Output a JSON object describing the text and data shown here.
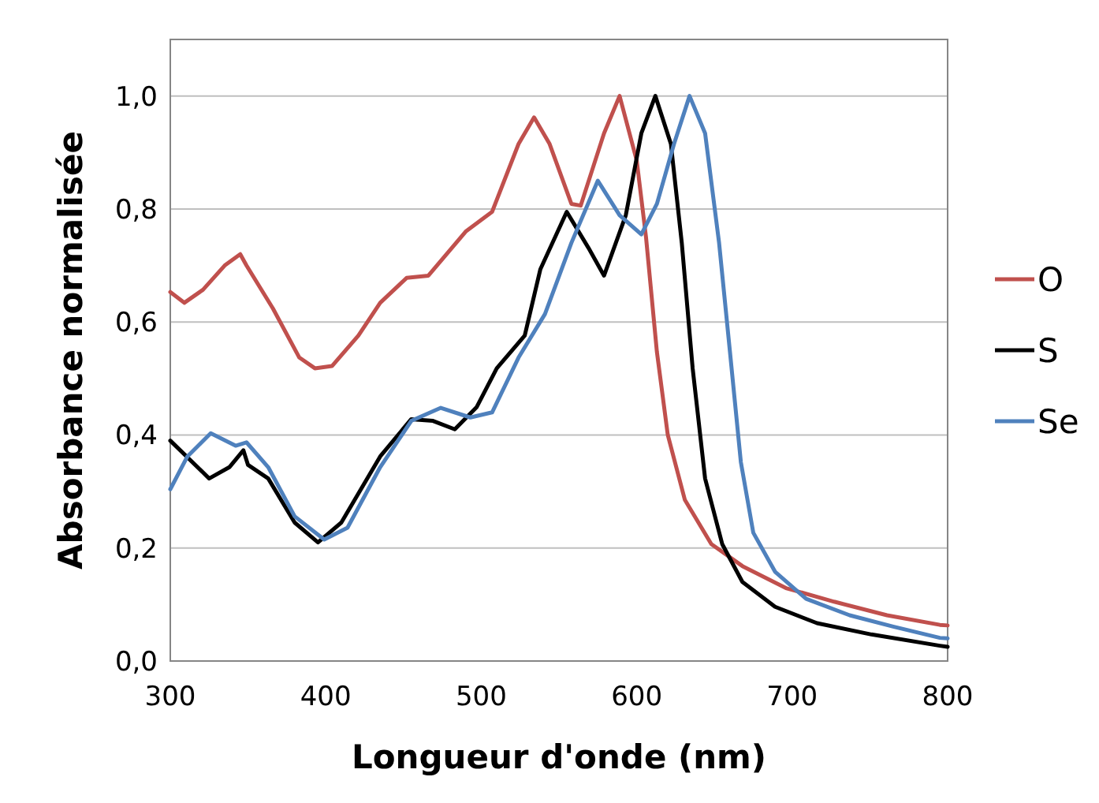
{
  "chart_data": {
    "type": "line",
    "xlabel": "Longueur d'onde (nm)",
    "ylabel": "Absorbance normalisée",
    "xlim": [
      300,
      800
    ],
    "xticks": [
      300,
      400,
      500,
      600,
      700,
      800
    ],
    "ylim": [
      0,
      1.1
    ],
    "yticks": [
      {
        "value": 0,
        "label": "0,0"
      },
      {
        "value": 0.2,
        "label": "0,2"
      },
      {
        "value": 0.4,
        "label": "0,4"
      },
      {
        "value": 0.6,
        "label": "0,6"
      },
      {
        "value": 0.8,
        "label": "0,8"
      },
      {
        "value": 1,
        "label": "1,0"
      }
    ],
    "grid": "y",
    "legend": "right",
    "marker": "none",
    "line_style": "solid",
    "series": [
      {
        "name": "O",
        "color": "#c0504d",
        "x": [
          300,
          309,
          321,
          335,
          345,
          349,
          366,
          383,
          393,
          404,
          421,
          435,
          452,
          466,
          490,
          507,
          524,
          534,
          544,
          558,
          564,
          579,
          589,
          600,
          606,
          613,
          620,
          631,
          648,
          668,
          696,
          727,
          761,
          795,
          800
        ],
        "values": [
          0.653,
          0.634,
          0.657,
          0.7,
          0.72,
          0.7,
          0.624,
          0.537,
          0.518,
          0.522,
          0.576,
          0.634,
          0.678,
          0.682,
          0.76,
          0.795,
          0.915,
          0.962,
          0.915,
          0.809,
          0.806,
          0.934,
          1.0,
          0.886,
          0.75,
          0.547,
          0.4,
          0.285,
          0.207,
          0.168,
          0.129,
          0.105,
          0.081,
          0.064,
          0.063
        ]
      },
      {
        "name": "S",
        "color": "#000000",
        "x": [
          300,
          325,
          338,
          347,
          350,
          363,
          380,
          395,
          410,
          435,
          455,
          469,
          483,
          497,
          510,
          528,
          538,
          555,
          569,
          579,
          593,
          603,
          612,
          622,
          629,
          636,
          644,
          655,
          668,
          689,
          716,
          751,
          795,
          800
        ],
        "values": [
          0.39,
          0.323,
          0.343,
          0.373,
          0.347,
          0.323,
          0.245,
          0.21,
          0.245,
          0.362,
          0.428,
          0.425,
          0.41,
          0.449,
          0.518,
          0.576,
          0.693,
          0.795,
          0.731,
          0.682,
          0.789,
          0.934,
          1.0,
          0.915,
          0.74,
          0.518,
          0.323,
          0.207,
          0.14,
          0.096,
          0.067,
          0.047,
          0.027,
          0.025
        ]
      },
      {
        "name": "Se",
        "color": "#4f81bd",
        "x": [
          300,
          311,
          326,
          342,
          349,
          363,
          380,
          399,
          414,
          435,
          455,
          474,
          493,
          507,
          524,
          541,
          558,
          575,
          589,
          603,
          613,
          624,
          634,
          644,
          653,
          660,
          667,
          675,
          689,
          709,
          737,
          765,
          795,
          800
        ],
        "values": [
          0.304,
          0.362,
          0.403,
          0.381,
          0.387,
          0.343,
          0.256,
          0.215,
          0.236,
          0.343,
          0.425,
          0.448,
          0.431,
          0.44,
          0.537,
          0.614,
          0.74,
          0.85,
          0.789,
          0.755,
          0.809,
          0.915,
          1.0,
          0.934,
          0.74,
          0.547,
          0.352,
          0.227,
          0.158,
          0.11,
          0.081,
          0.061,
          0.041,
          0.04
        ]
      }
    ]
  }
}
